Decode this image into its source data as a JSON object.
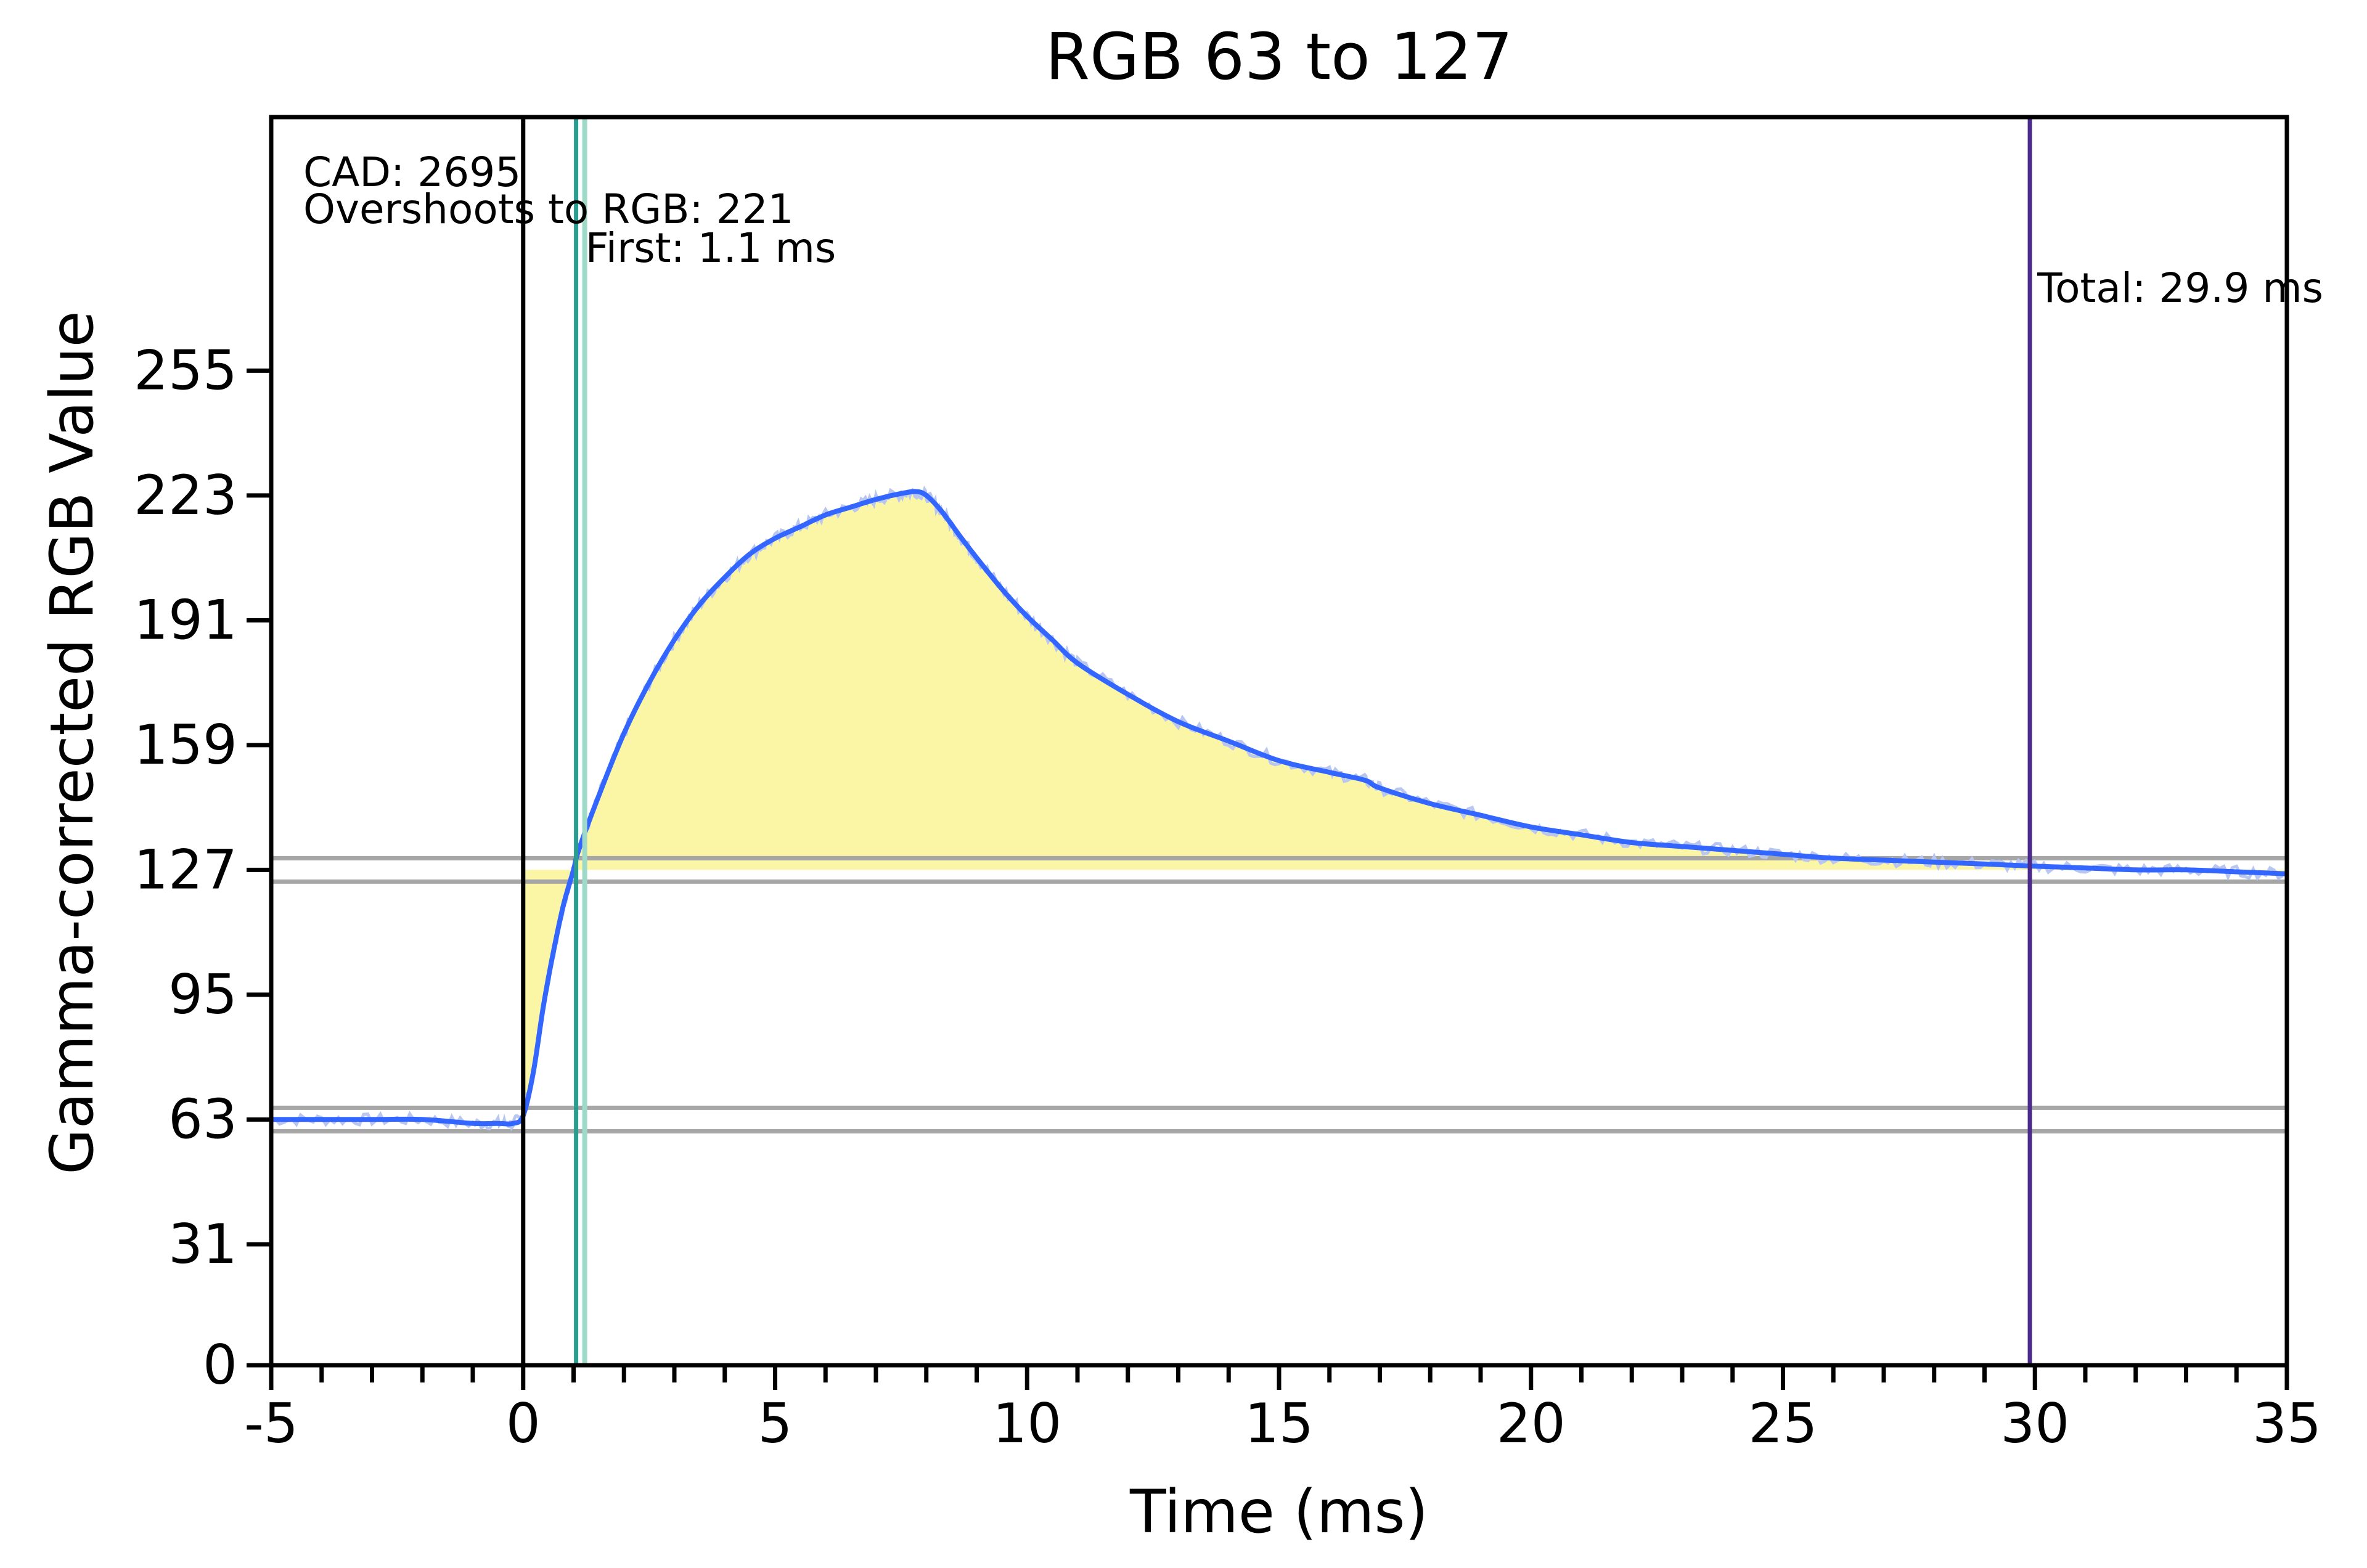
{
  "chart_data": {
    "type": "line",
    "title": "RGB 63 to 127",
    "xlabel": "Time (ms)",
    "ylabel": "Gamma-corrected RGB Value",
    "xlim": [
      -5,
      35
    ],
    "ylim": [
      0,
      320
    ],
    "x_ticks": [
      -5,
      0,
      5,
      10,
      15,
      20,
      25,
      30,
      35
    ],
    "x_minor_step": 1,
    "y_ticks": [
      0,
      31,
      63,
      95,
      127,
      159,
      191,
      223,
      255
    ],
    "grid": false,
    "legend": "none",
    "annotations": [
      {
        "id": "cad",
        "text": "CAD: 2695"
      },
      {
        "id": "overshoot",
        "text": "Overshoots to RGB: 221"
      },
      {
        "id": "first",
        "text": "First: 1.1 ms"
      },
      {
        "id": "total",
        "text": "Total: 29.9 ms"
      }
    ],
    "tolerance_bands": [
      {
        "name": "start-band",
        "low": 60,
        "high": 66
      },
      {
        "name": "end-band",
        "low": 124,
        "high": 130
      }
    ],
    "markers": [
      {
        "name": "start-marker",
        "x": 0,
        "color": "#000000"
      },
      {
        "name": "first-marker",
        "x": 1.05,
        "color": "#2a9d8f"
      },
      {
        "name": "total-marker",
        "x": 29.9,
        "color": "#4b2a8c"
      }
    ],
    "series": [
      {
        "color": "#3366ff",
        "raw_color": "#b8c6f0",
        "fill_color": "#fbf5a6",
        "x": [
          -5,
          -4,
          -3,
          -2,
          -1,
          -0.5,
          -0.2,
          0,
          0.2,
          0.4,
          0.6,
          0.8,
          1,
          1.1,
          1.5,
          2,
          2.5,
          3,
          3.5,
          4,
          4.5,
          5,
          5.5,
          6,
          6.5,
          7,
          7.5,
          7.8,
          8,
          8.3,
          8.7,
          9,
          9.5,
          10,
          10.5,
          11,
          12,
          13,
          14,
          15,
          16,
          16.7,
          17,
          18,
          19,
          20,
          21,
          22,
          23,
          24,
          25,
          26,
          27,
          28,
          29,
          29.9,
          31,
          32,
          33,
          34,
          35
        ],
        "y": [
          63,
          63,
          63,
          63,
          62,
          62,
          62,
          64,
          75,
          92,
          106,
          118,
          127,
          132,
          146,
          162,
          175,
          186,
          195,
          202,
          208,
          212,
          215,
          218,
          220,
          222,
          223.5,
          224,
          223,
          219,
          212,
          207,
          199,
          192,
          186,
          180,
          172,
          165,
          160,
          155,
          152,
          150,
          148,
          144,
          141,
          138,
          136,
          134,
          133,
          132,
          131,
          130,
          129.5,
          129,
          128.5,
          128,
          127.5,
          127,
          127,
          126.5,
          126
        ]
      }
    ]
  }
}
